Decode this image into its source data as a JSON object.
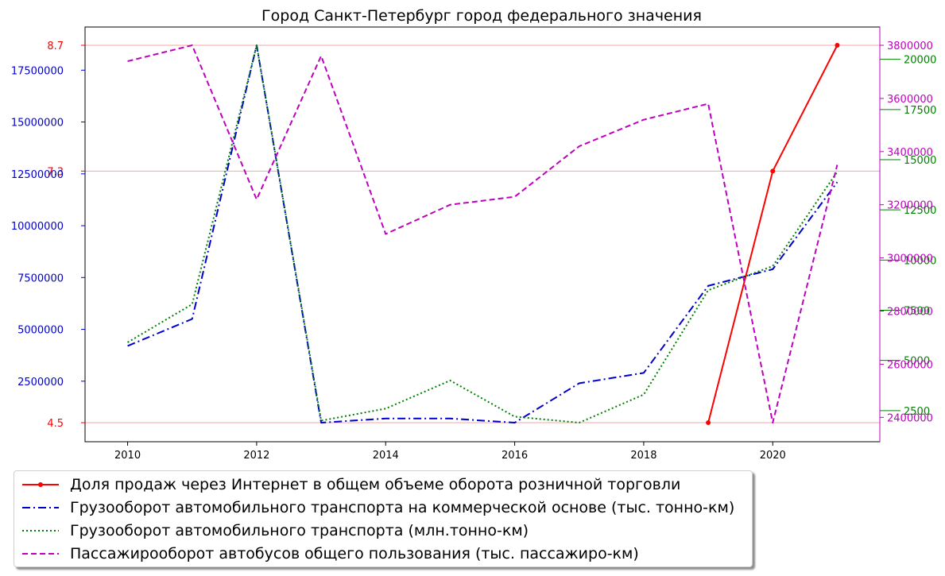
{
  "chart_data": {
    "type": "line",
    "title": "Город Санкт-Петербург город федерального значения",
    "x": [
      2010,
      2011,
      2012,
      2013,
      2014,
      2015,
      2016,
      2017,
      2018,
      2019,
      2020,
      2021
    ],
    "xlim": [
      2009.34,
      2021.66
    ],
    "xticks": [
      "2010",
      "2012",
      "2014",
      "2016",
      "2018",
      "2020"
    ],
    "grid": "horizontal lines at red-axis ticks",
    "legend_position": "below plot, left",
    "series": [
      {
        "name": "Доля продаж через Интернет в общем объеме оборота розничной торговли",
        "axis": "left-red",
        "color": "#ff0000",
        "style": "solid with point markers",
        "values": [
          null,
          null,
          null,
          null,
          null,
          null,
          null,
          null,
          null,
          4.5,
          7.3,
          8.7
        ]
      },
      {
        "name": "Грузооборот автомобильного транспорта на коммерческой основе (тыс. тонно-км)",
        "axis": "left-blue",
        "color": "#0000cc",
        "style": "dash-dot",
        "values": [
          4200000,
          5500000,
          18700000,
          500000,
          700000,
          700000,
          500000,
          2400000,
          2900000,
          7100000,
          7900000,
          12100000
        ]
      },
      {
        "name": "Грузооборот автомобильного транспорта (млн.тонно-км)",
        "axis": "right-green",
        "color": "#008000",
        "style": "dotted",
        "values": [
          5900,
          7800,
          20700,
          2000,
          2600,
          4000,
          2200,
          1900,
          3300,
          8500,
          9700,
          14400
        ]
      },
      {
        "name": "Пассажирооборот автобусов общего пользования (тыс. пассажиро-км)",
        "axis": "right-magenta",
        "color": "#bf00bf",
        "style": "dashed",
        "values": [
          3740000,
          3800000,
          3220000,
          3760000,
          3090000,
          3200000,
          3230000,
          3420000,
          3520000,
          3580000,
          2380000,
          3350000
        ]
      }
    ],
    "axes": {
      "left_red": {
        "color": "#ff0000",
        "ylim": [
          4.5,
          8.7
        ],
        "ticks": [
          "4.5",
          "7.3",
          "8.7"
        ]
      },
      "left_blue": {
        "color": "#0000cc",
        "ylim": [
          500000,
          18700000
        ],
        "ticks": [
          "2500000",
          "5000000",
          "7500000",
          "10000000",
          "12500000",
          "15000000",
          "17500000"
        ]
      },
      "right_green": {
        "color": "#008000",
        "ylim": [
          1900,
          20700
        ],
        "ticks": [
          "2500",
          "5000",
          "7500",
          "10000",
          "12500",
          "15000",
          "17500",
          "20000"
        ]
      },
      "right_magenta": {
        "color": "#bf00bf",
        "ylim": [
          2380000,
          3800000
        ],
        "ticks": [
          "2400000",
          "2600000",
          "2800000",
          "3000000",
          "3200000",
          "3400000",
          "3600000",
          "3800000"
        ]
      }
    }
  }
}
